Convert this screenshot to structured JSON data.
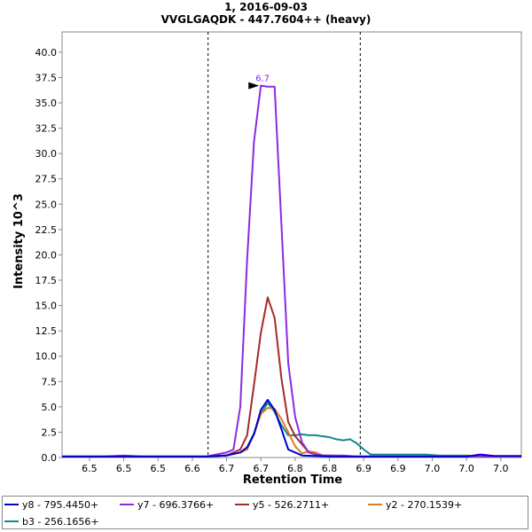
{
  "chart_data": {
    "type": "line",
    "title": "1, 2016-09-03",
    "subtitle": "VVGLGAQDK - 447.7604++ (heavy)",
    "xlabel": "Retention Time",
    "ylabel": "Intensity 10^3",
    "xlim": [
      6.41,
      7.08
    ],
    "ylim": [
      0,
      42
    ],
    "yticks": [
      0.0,
      2.5,
      5.0,
      7.5,
      10.0,
      12.5,
      15.0,
      17.5,
      20.0,
      22.5,
      25.0,
      27.5,
      30.0,
      32.5,
      35.0,
      37.5,
      40.0
    ],
    "ytick_labels": [
      "0.0",
      "2.5",
      "5.0",
      "7.5",
      "10.0",
      "12.5",
      "15.0",
      "17.5",
      "20.0",
      "22.5",
      "25.0",
      "27.5",
      "30.0",
      "32.5",
      "35.0",
      "37.5",
      "40.0"
    ],
    "xticks": [
      6.45,
      6.5,
      6.55,
      6.6,
      6.65,
      6.7,
      6.75,
      6.8,
      6.85,
      6.9,
      6.95,
      7.0,
      7.05
    ],
    "xtick_labels": [
      "6.5",
      "6.5",
      "6.5",
      "6.6",
      "6.7",
      "6.7",
      "6.8",
      "6.8",
      "6.9",
      "6.9",
      "7.0",
      "7.0",
      "7.0"
    ],
    "boundaries": [
      6.623,
      6.845
    ],
    "peak_annotation": {
      "text": "6.7",
      "x": 6.7,
      "y": 36.7,
      "color": "#8a2be2"
    },
    "grid": false,
    "legend_position": "bottom",
    "series": [
      {
        "name": "y8 - 795.4450+",
        "color": "#0000cc",
        "x": [
          6.41,
          6.44,
          6.47,
          6.5,
          6.53,
          6.56,
          6.59,
          6.62,
          6.65,
          6.67,
          6.68,
          6.69,
          6.7,
          6.71,
          6.72,
          6.73,
          6.74,
          6.76,
          6.78,
          6.8,
          6.82,
          6.84,
          6.86,
          6.88,
          6.9,
          6.92,
          6.94,
          6.96,
          6.98,
          7.0,
          7.02,
          7.04,
          7.06,
          7.08
        ],
        "y": [
          0.1,
          0.1,
          0.1,
          0.1,
          0.1,
          0.1,
          0.1,
          0.1,
          0.2,
          0.5,
          1.0,
          2.3,
          4.7,
          5.7,
          4.7,
          2.8,
          0.8,
          0.2,
          0.15,
          0.1,
          0.1,
          0.1,
          0.1,
          0.1,
          0.1,
          0.1,
          0.1,
          0.1,
          0.1,
          0.1,
          0.3,
          0.15,
          0.15,
          0.15
        ]
      },
      {
        "name": "y7 - 696.3766+",
        "color": "#8a2be2",
        "x": [
          6.41,
          6.44,
          6.47,
          6.5,
          6.53,
          6.56,
          6.59,
          6.62,
          6.65,
          6.66,
          6.67,
          6.68,
          6.69,
          6.7,
          6.71,
          6.72,
          6.73,
          6.74,
          6.75,
          6.76,
          6.77,
          6.78,
          6.79,
          6.8,
          6.82,
          6.84,
          6.86,
          6.88,
          6.9,
          6.95,
          7.0,
          7.05,
          7.08
        ],
        "y": [
          0.1,
          0.1,
          0.1,
          0.2,
          0.1,
          0.1,
          0.1,
          0.1,
          0.5,
          0.8,
          5.0,
          19.5,
          31.2,
          36.7,
          36.6,
          36.6,
          23.0,
          9.3,
          4.0,
          1.5,
          0.5,
          0.3,
          0.2,
          0.2,
          0.2,
          0.1,
          0.1,
          0.1,
          0.1,
          0.1,
          0.1,
          0.1,
          0.1
        ]
      },
      {
        "name": "y5 - 526.2711+",
        "color": "#a52a2a",
        "x": [
          6.41,
          6.44,
          6.47,
          6.5,
          6.53,
          6.56,
          6.59,
          6.62,
          6.65,
          6.67,
          6.68,
          6.69,
          6.7,
          6.71,
          6.72,
          6.73,
          6.74,
          6.75,
          6.76,
          6.77,
          6.78,
          6.79,
          6.8,
          6.82,
          6.84,
          6.86,
          6.88,
          6.9,
          6.95,
          7.0,
          7.05,
          7.08
        ],
        "y": [
          0.1,
          0.1,
          0.1,
          0.1,
          0.1,
          0.1,
          0.1,
          0.1,
          0.2,
          0.8,
          2.2,
          7.2,
          12.3,
          15.8,
          13.8,
          7.8,
          3.5,
          2.1,
          1.3,
          0.5,
          0.3,
          0.2,
          0.2,
          0.1,
          0.1,
          0.1,
          0.1,
          0.1,
          0.1,
          0.1,
          0.1,
          0.1
        ]
      },
      {
        "name": "y2 - 270.1539+",
        "color": "#e07b20",
        "x": [
          6.41,
          6.44,
          6.47,
          6.5,
          6.53,
          6.56,
          6.59,
          6.62,
          6.65,
          6.67,
          6.68,
          6.69,
          6.7,
          6.71,
          6.72,
          6.73,
          6.74,
          6.75,
          6.76,
          6.77,
          6.78,
          6.79,
          6.8,
          6.82,
          6.84,
          6.86,
          6.88,
          6.9,
          6.95,
          7.0,
          7.05,
          7.08
        ],
        "y": [
          0.1,
          0.1,
          0.1,
          0.1,
          0.1,
          0.1,
          0.1,
          0.1,
          0.2,
          0.5,
          0.8,
          2.3,
          4.3,
          4.9,
          4.8,
          3.8,
          2.5,
          1.1,
          0.4,
          0.6,
          0.5,
          0.2,
          0.1,
          0.1,
          0.1,
          0.1,
          0.1,
          0.1,
          0.1,
          0.1,
          0.1,
          0.1
        ]
      },
      {
        "name": "b3 - 256.1656+",
        "color": "#138a8a",
        "x": [
          6.41,
          6.44,
          6.47,
          6.5,
          6.53,
          6.56,
          6.59,
          6.62,
          6.65,
          6.67,
          6.68,
          6.69,
          6.7,
          6.71,
          6.72,
          6.73,
          6.74,
          6.75,
          6.76,
          6.77,
          6.78,
          6.79,
          6.8,
          6.81,
          6.82,
          6.83,
          6.84,
          6.85,
          6.86,
          6.88,
          6.9,
          6.92,
          6.94,
          6.96,
          6.98,
          7.0,
          7.02,
          7.04,
          7.06,
          7.08
        ],
        "y": [
          0.1,
          0.1,
          0.1,
          0.1,
          0.1,
          0.1,
          0.1,
          0.1,
          0.2,
          0.5,
          1.0,
          2.4,
          4.3,
          5.4,
          4.5,
          3.2,
          2.2,
          2.2,
          2.3,
          2.2,
          2.2,
          2.1,
          2.0,
          1.8,
          1.7,
          1.8,
          1.4,
          0.8,
          0.3,
          0.3,
          0.3,
          0.3,
          0.3,
          0.2,
          0.2,
          0.2,
          0.1,
          0.1,
          0.1,
          0.1
        ]
      }
    ]
  }
}
